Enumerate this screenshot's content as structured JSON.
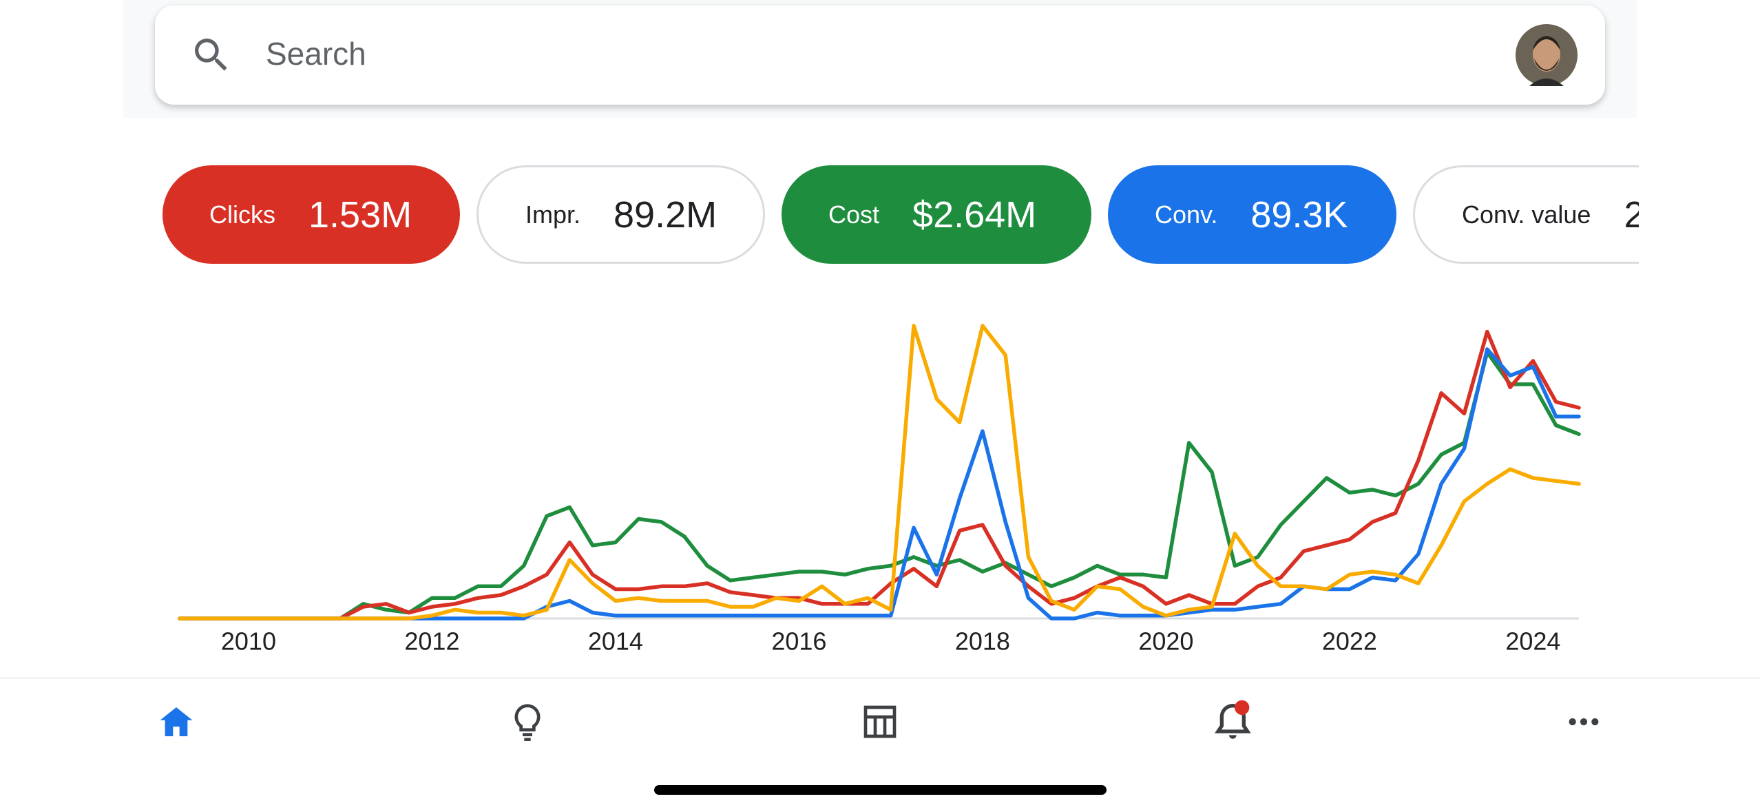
{
  "search": {
    "placeholder": "Search"
  },
  "metrics": [
    {
      "label": "Clicks",
      "value": "1.53M",
      "color": "#d93025"
    },
    {
      "label": "Impr.",
      "value": "89.2M"
    },
    {
      "label": "Cost",
      "value": "$2.64M",
      "color": "#1e8e3e"
    },
    {
      "label": "Conv.",
      "value": "89.3K",
      "color": "#1a73e8"
    },
    {
      "label": "Conv. value",
      "value": "2"
    }
  ],
  "chart_data": {
    "type": "line",
    "x": [
      2009.25,
      2009.5,
      2009.75,
      2010,
      2010.25,
      2010.5,
      2010.75,
      2011,
      2011.25,
      2011.5,
      2011.75,
      2012,
      2012.25,
      2012.5,
      2012.75,
      2013,
      2013.25,
      2013.5,
      2013.75,
      2014,
      2014.25,
      2014.5,
      2014.75,
      2015,
      2015.25,
      2015.5,
      2015.75,
      2016,
      2016.25,
      2016.5,
      2016.75,
      2017,
      2017.25,
      2017.5,
      2017.75,
      2018,
      2018.25,
      2018.5,
      2018.75,
      2019,
      2019.25,
      2019.5,
      2019.75,
      2020,
      2020.25,
      2020.5,
      2020.75,
      2021,
      2021.25,
      2021.5,
      2021.75,
      2022,
      2022.25,
      2022.5,
      2022.75,
      2023,
      2023.25,
      2023.5,
      2023.75,
      2024,
      2024.25,
      2024.5
    ],
    "series": [
      {
        "color": "#1e8e3e",
        "values": [
          0,
          0,
          0,
          0,
          0,
          0,
          0,
          0,
          5,
          3,
          2,
          7,
          7,
          11,
          11,
          18,
          35,
          38,
          25,
          26,
          34,
          33,
          28,
          18,
          13,
          14,
          15,
          16,
          16,
          15,
          17,
          18,
          21,
          18,
          20,
          16,
          19,
          15,
          11,
          14,
          18,
          15,
          15,
          14,
          60,
          50,
          18,
          21,
          32,
          40,
          48,
          43,
          44,
          42,
          46,
          56,
          60,
          91,
          80,
          80,
          66,
          63
        ]
      },
      {
        "color": "#d93025",
        "values": [
          0,
          0,
          0,
          0,
          0,
          0,
          0,
          0,
          4,
          5,
          2,
          4,
          5,
          7,
          8,
          11,
          15,
          26,
          15,
          10,
          10,
          11,
          11,
          12,
          9,
          8,
          7,
          7,
          5,
          5,
          5,
          12,
          17,
          11,
          30,
          32,
          18,
          11,
          5,
          7,
          11,
          14,
          11,
          5,
          8,
          5,
          5,
          11,
          14,
          23,
          25,
          27,
          33,
          36,
          54,
          77,
          70,
          98,
          79,
          88,
          74,
          72
        ]
      },
      {
        "color": "#1a73e8",
        "values": [
          0,
          0,
          0,
          0,
          0,
          0,
          0,
          0,
          0,
          0,
          0,
          0,
          0,
          0,
          0,
          0,
          4,
          6,
          2,
          1,
          1,
          1,
          1,
          1,
          1,
          1,
          1,
          1,
          1,
          1,
          1,
          1,
          31,
          15,
          41,
          64,
          33,
          7,
          0,
          0,
          2,
          1,
          1,
          1,
          2,
          3,
          3,
          4,
          5,
          11,
          10,
          10,
          14,
          13,
          22,
          46,
          58,
          92,
          83,
          86,
          69,
          69
        ]
      },
      {
        "color": "#f9ab00",
        "values": [
          0,
          0,
          0,
          0,
          0,
          0,
          0,
          0,
          0,
          0,
          0,
          1,
          3,
          2,
          2,
          1,
          3,
          20,
          12,
          6,
          7,
          6,
          6,
          6,
          4,
          4,
          7,
          6,
          11,
          5,
          7,
          3,
          100,
          75,
          67,
          100,
          90,
          21,
          6,
          3,
          11,
          10,
          4,
          1,
          3,
          4,
          29,
          18,
          11,
          11,
          10,
          15,
          16,
          15,
          12,
          25,
          40,
          46,
          51,
          48,
          47,
          46
        ]
      }
    ],
    "xlim": [
      2009.25,
      2024.5
    ],
    "xticks": [
      2010,
      2012,
      2014,
      2016,
      2018,
      2020,
      2022,
      2024
    ],
    "ylim": [
      0,
      100
    ]
  }
}
